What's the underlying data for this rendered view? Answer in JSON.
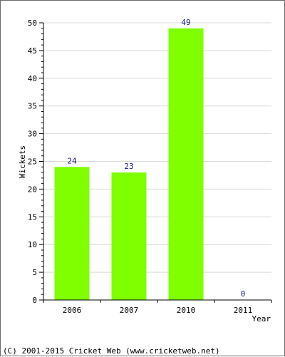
{
  "chart_data": {
    "type": "bar",
    "categories": [
      "2006",
      "2007",
      "2010",
      "2011"
    ],
    "values": [
      24,
      23,
      49,
      0
    ],
    "title": "",
    "xlabel": "Year",
    "ylabel": "Wickets",
    "ylim": [
      0,
      50
    ],
    "yticks": [
      0,
      5,
      10,
      15,
      20,
      25,
      30,
      35,
      40,
      45,
      50
    ],
    "grid": true,
    "bar_color": "#7fff00",
    "label_color": "#1a1a8c"
  },
  "footer": {
    "copyright": "(C) 2001-2015 Cricket Web (www.cricketweb.net)"
  }
}
